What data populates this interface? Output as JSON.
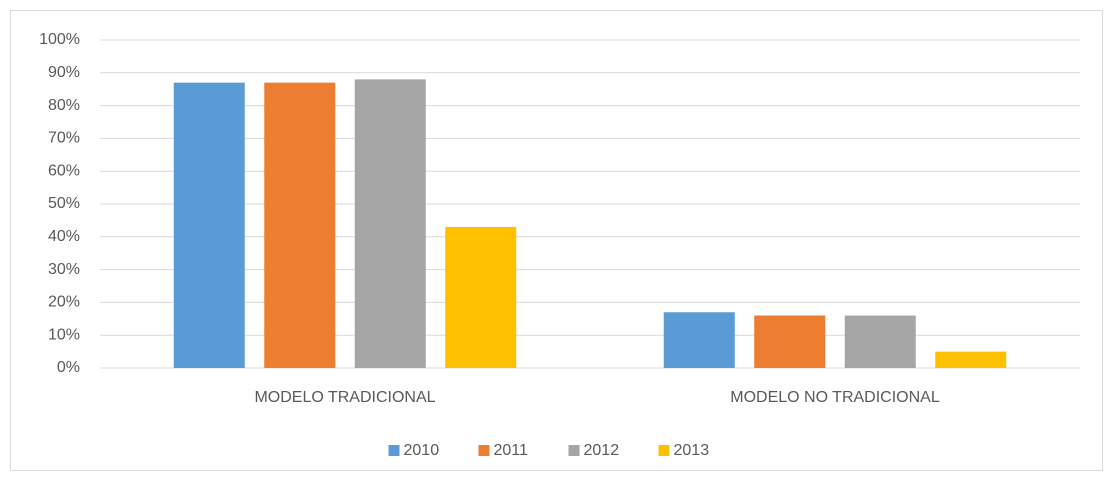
{
  "chart_data": {
    "type": "bar",
    "categories": [
      "MODELO TRADICIONAL",
      "MODELO NO TRADICIONAL"
    ],
    "series": [
      {
        "name": "2010",
        "color": "#5b9bd5",
        "values": [
          87,
          17
        ]
      },
      {
        "name": "2011",
        "color": "#ed7d31",
        "values": [
          87,
          16
        ]
      },
      {
        "name": "2012",
        "color": "#a5a5a5",
        "values": [
          88,
          16
        ]
      },
      {
        "name": "2013",
        "color": "#ffc000",
        "values": [
          43,
          5
        ]
      }
    ],
    "ylim": [
      0,
      100
    ],
    "yticks": [
      {
        "value": 0,
        "label": "0%"
      },
      {
        "value": 10,
        "label": "10%"
      },
      {
        "value": 20,
        "label": "20%"
      },
      {
        "value": 30,
        "label": "30%"
      },
      {
        "value": 40,
        "label": "40%"
      },
      {
        "value": 50,
        "label": "50%"
      },
      {
        "value": 60,
        "label": "60%"
      },
      {
        "value": 70,
        "label": "70%"
      },
      {
        "value": 80,
        "label": "80%"
      },
      {
        "value": 90,
        "label": "90%"
      },
      {
        "value": 100,
        "label": "100%"
      }
    ],
    "grid": true,
    "legend": "bottom"
  }
}
